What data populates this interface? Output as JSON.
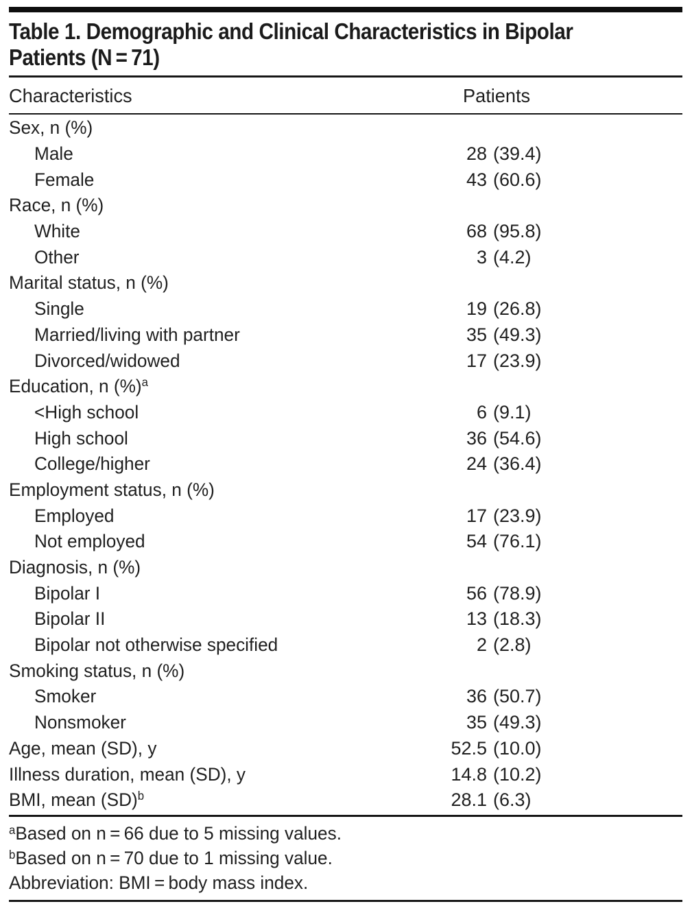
{
  "page": {
    "background": "#ffffff",
    "text_color": "#1f1f1f",
    "rule_color": "#161616"
  },
  "table": {
    "title_lines": [
      "Table 1. Demographic and Clinical Characteristics in Bipolar",
      "Patients (N = 71)"
    ],
    "columns": {
      "characteristics": "Characteristics",
      "patients": "Patients"
    },
    "rows": [
      {
        "label": "Sex, n (%)",
        "indent": false,
        "sup": "",
        "num": "",
        "paren": ""
      },
      {
        "label": "Male",
        "indent": true,
        "sup": "",
        "num": "28",
        "paren": "(39.4)"
      },
      {
        "label": "Female",
        "indent": true,
        "sup": "",
        "num": "43",
        "paren": "(60.6)"
      },
      {
        "label": "Race, n (%)",
        "indent": false,
        "sup": "",
        "num": "",
        "paren": ""
      },
      {
        "label": "White",
        "indent": true,
        "sup": "",
        "num": "68",
        "paren": "(95.8)"
      },
      {
        "label": "Other",
        "indent": true,
        "sup": "",
        "num": "3",
        "paren": "(4.2)"
      },
      {
        "label": "Marital status, n (%)",
        "indent": false,
        "sup": "",
        "num": "",
        "paren": ""
      },
      {
        "label": "Single",
        "indent": true,
        "sup": "",
        "num": "19",
        "paren": "(26.8)"
      },
      {
        "label": "Married/living with partner",
        "indent": true,
        "sup": "",
        "num": "35",
        "paren": "(49.3)"
      },
      {
        "label": "Divorced/widowed",
        "indent": true,
        "sup": "",
        "num": "17",
        "paren": "(23.9)"
      },
      {
        "label": "Education, n (%)",
        "indent": false,
        "sup": "a",
        "num": "",
        "paren": ""
      },
      {
        "label": "<High school",
        "indent": true,
        "sup": "",
        "num": "6",
        "paren": "(9.1)"
      },
      {
        "label": "High school",
        "indent": true,
        "sup": "",
        "num": "36",
        "paren": "(54.6)"
      },
      {
        "label": "College/higher",
        "indent": true,
        "sup": "",
        "num": "24",
        "paren": "(36.4)"
      },
      {
        "label": "Employment status, n (%)",
        "indent": false,
        "sup": "",
        "num": "",
        "paren": ""
      },
      {
        "label": "Employed",
        "indent": true,
        "sup": "",
        "num": "17",
        "paren": "(23.9)"
      },
      {
        "label": "Not employed",
        "indent": true,
        "sup": "",
        "num": "54",
        "paren": "(76.1)"
      },
      {
        "label": "Diagnosis, n (%)",
        "indent": false,
        "sup": "",
        "num": "",
        "paren": ""
      },
      {
        "label": "Bipolar I",
        "indent": true,
        "sup": "",
        "num": "56",
        "paren": "(78.9)"
      },
      {
        "label": "Bipolar II",
        "indent": true,
        "sup": "",
        "num": "13",
        "paren": "(18.3)"
      },
      {
        "label": "Bipolar not otherwise specified",
        "indent": true,
        "sup": "",
        "num": "2",
        "paren": "(2.8)"
      },
      {
        "label": "Smoking status, n (%)",
        "indent": false,
        "sup": "",
        "num": "",
        "paren": ""
      },
      {
        "label": "Smoker",
        "indent": true,
        "sup": "",
        "num": "36",
        "paren": "(50.7)"
      },
      {
        "label": "Nonsmoker",
        "indent": true,
        "sup": "",
        "num": "35",
        "paren": "(49.3)"
      },
      {
        "label": "Age, mean (SD), y",
        "indent": false,
        "sup": "",
        "num": "52.5",
        "paren": "(10.0)"
      },
      {
        "label": "Illness duration, mean (SD), y",
        "indent": false,
        "sup": "",
        "num": "14.8",
        "paren": "(10.2)"
      },
      {
        "label": "BMI, mean (SD)",
        "indent": false,
        "sup": "b",
        "num": "28.1",
        "paren": "(6.3)"
      }
    ],
    "footnotes": [
      {
        "sup": "a",
        "text": "Based on n = 66 due to 5 missing values."
      },
      {
        "sup": "b",
        "text": "Based on n = 70 due to 1 missing value."
      },
      {
        "sup": "",
        "text": "Abbreviation: BMI = body mass index."
      }
    ]
  }
}
